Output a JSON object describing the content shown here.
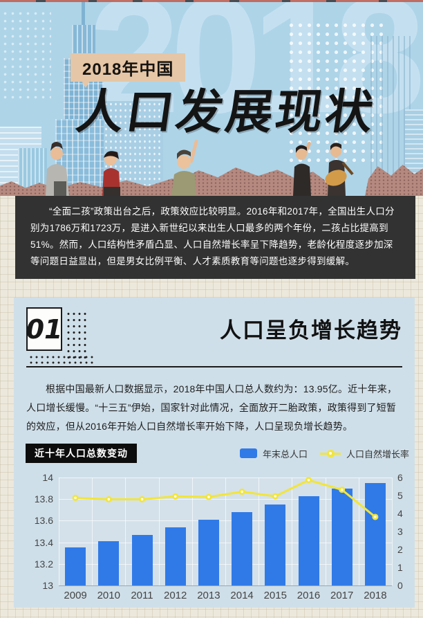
{
  "header": {
    "tag_label": "2018年中国",
    "title": "人口发展现状",
    "watermark": "2018"
  },
  "intro": {
    "text": "“全面二孩”政策出台之后，政策效应比较明显。2016年和2017年，全国出生人口分别为1786万和1723万，是进入新世纪以来出生人口最多的两个年份，二孩占比提高到51%。然而，人口结构性矛盾凸显、人口自然增长率呈下降趋势，老龄化程度逐步加深等问题日益显出，但是男女比例平衡、人才素质教育等问题也逐步得到缓解。"
  },
  "section1": {
    "number": "01",
    "title": "人口呈负增长趋势",
    "paragraph": "根据中国最新人口数据显示，2018年中国人口总人数约为：13.95亿。近十年来，人口增长缓慢。“十三五”伊始，国家针对此情况，全面放开二胎政策，政策得到了短暂的效应，但从2016年开始人口自然增长率开始下降，人口呈现负增长趋势。"
  },
  "chart_data": {
    "type": "bar+line",
    "title": "近十年人口总数变动",
    "categories": [
      "2009",
      "2010",
      "2011",
      "2012",
      "2013",
      "2014",
      "2015",
      "2016",
      "2017",
      "2018"
    ],
    "series": [
      {
        "name": "年末总人口",
        "type": "bar",
        "axis": "left",
        "unit": "亿",
        "color": "#307ae8",
        "values": [
          13.35,
          13.41,
          13.47,
          13.54,
          13.61,
          13.68,
          13.75,
          13.83,
          13.9,
          13.95
        ]
      },
      {
        "name": "人口自然增长率",
        "type": "line",
        "axis": "right",
        "unit": "‰",
        "color": "#f2e53a",
        "values": [
          4.87,
          4.79,
          4.79,
          4.95,
          4.92,
          5.21,
          4.96,
          5.86,
          5.32,
          3.81
        ]
      }
    ],
    "left_axis": {
      "min": 13,
      "max": 14,
      "ticks": [
        13,
        13.2,
        13.4,
        13.6,
        13.8,
        14
      ]
    },
    "right_axis": {
      "min": 0,
      "max": 6,
      "ticks": [
        0,
        1,
        2,
        3,
        4,
        5,
        6
      ]
    },
    "legend_position": "top-right",
    "grid": true
  },
  "colors": {
    "header_blue": "#aed4e8",
    "panel_blue": "#cfdfe9",
    "intro_dark": "#323232",
    "tag_tan": "#e5c6a6",
    "page_cream": "#ece8db",
    "bar_blue": "#307ae8",
    "line_yellow": "#f2e53a"
  }
}
